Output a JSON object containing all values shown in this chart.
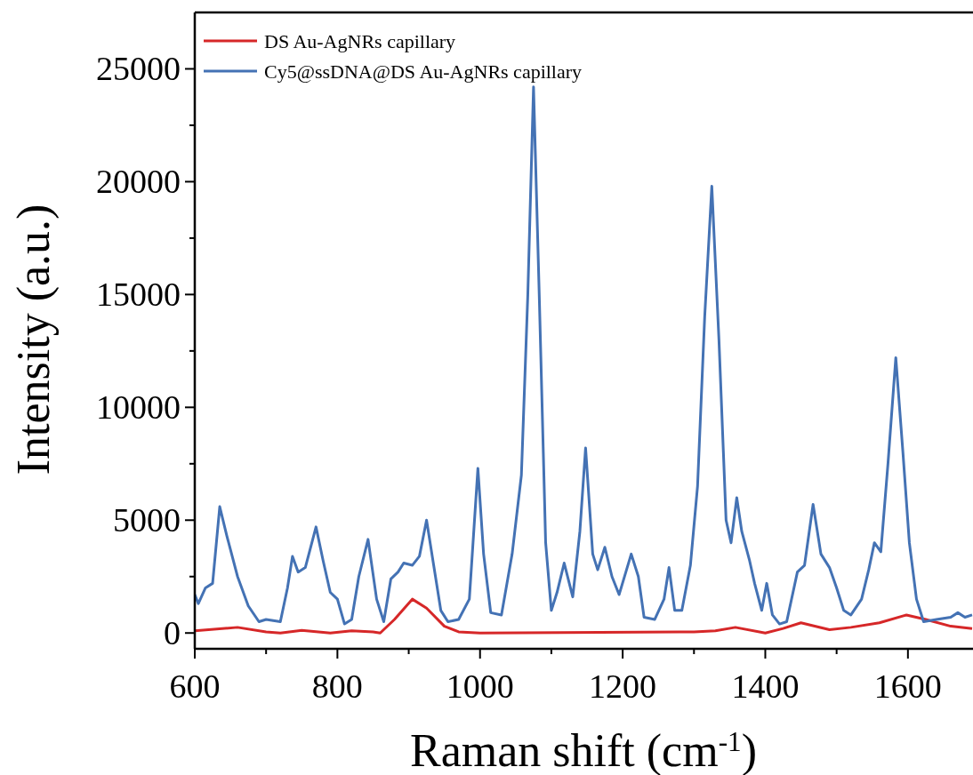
{
  "chart_data": {
    "type": "line",
    "xlabel": "Raman shift (cm$^{-1}$)",
    "ylabel": "Intensity (a.u.)",
    "xlim": [
      600,
      1690
    ],
    "ylim": [
      -700,
      27500
    ],
    "xticks": [
      600,
      {
        "value": 700,
        "label": null
      },
      800,
      {
        "value": 900,
        "label": null
      },
      1000,
      {
        "value": 1100,
        "label": null
      },
      1200,
      {
        "value": 1300,
        "label": null
      },
      1400,
      {
        "value": 1500,
        "label": null
      },
      1600
    ],
    "yticks": [
      0,
      {
        "value": 2500,
        "label": null
      },
      5000,
      {
        "value": 7500,
        "label": null
      },
      10000,
      {
        "value": 12500,
        "label": null
      },
      15000,
      {
        "value": 17500,
        "label": null
      },
      20000,
      {
        "value": 22500,
        "label": null
      },
      25000
    ],
    "grid": false,
    "legend": "top left",
    "line_style": "solid",
    "series": [
      {
        "name": "DS Au-AgNRs capillary",
        "color": "#d62728",
        "x": [
          600,
          660,
          700,
          720,
          750,
          790,
          820,
          850,
          860,
          880,
          905,
          925,
          950,
          970,
          1000,
          1300,
          1330,
          1358,
          1400,
          1425,
          1450,
          1490,
          1520,
          1560,
          1598,
          1625,
          1660,
          1690
        ],
        "values": [
          100,
          250,
          50,
          0,
          120,
          0,
          100,
          50,
          0,
          600,
          1500,
          1100,
          300,
          50,
          0,
          50,
          100,
          250,
          0,
          200,
          450,
          150,
          250,
          450,
          800,
          600,
          300,
          200
        ]
      },
      {
        "name": "Cy5@ssDNA@DS Au-AgNRs capillary",
        "color": "#4472b4",
        "x": [
          600,
          605,
          615,
          625,
          635,
          645,
          660,
          675,
          690,
          700,
          720,
          730,
          737,
          745,
          755,
          770,
          780,
          790,
          800,
          810,
          820,
          830,
          843,
          855,
          865,
          875,
          885,
          893,
          905,
          915,
          925,
          935,
          945,
          955,
          970,
          985,
          997,
          1005,
          1015,
          1030,
          1045,
          1058,
          1067,
          1075,
          1083,
          1092,
          1100,
          1108,
          1118,
          1130,
          1140,
          1148,
          1158,
          1165,
          1175,
          1185,
          1195,
          1212,
          1222,
          1230,
          1245,
          1258,
          1265,
          1273,
          1283,
          1295,
          1305,
          1315,
          1325,
          1335,
          1345,
          1352,
          1360,
          1367,
          1378,
          1385,
          1395,
          1402,
          1410,
          1420,
          1430,
          1445,
          1455,
          1467,
          1478,
          1490,
          1500,
          1510,
          1520,
          1535,
          1545,
          1553,
          1562,
          1572,
          1583,
          1593,
          1602,
          1612,
          1622,
          1640,
          1660,
          1670,
          1680,
          1690
        ],
        "values": [
          1700,
          1300,
          2000,
          2200,
          5600,
          4300,
          2500,
          1200,
          500,
          600,
          500,
          2000,
          3400,
          2700,
          2900,
          4700,
          3200,
          1800,
          1500,
          400,
          600,
          2500,
          4150,
          1500,
          500,
          2400,
          2700,
          3100,
          3000,
          3400,
          5000,
          3000,
          1000,
          500,
          600,
          1500,
          7300,
          3500,
          900,
          800,
          3500,
          7000,
          15000,
          24200,
          15000,
          4000,
          1000,
          1800,
          3100,
          1600,
          4500,
          8200,
          3500,
          2800,
          3800,
          2500,
          1700,
          3500,
          2500,
          700,
          600,
          1500,
          2900,
          1000,
          1000,
          3000,
          6500,
          14000,
          19800,
          13000,
          5000,
          4000,
          6000,
          4500,
          3200,
          2200,
          1000,
          2200,
          800,
          400,
          500,
          2700,
          3000,
          5700,
          3500,
          2900,
          2000,
          1000,
          800,
          1500,
          2800,
          4000,
          3600,
          7500,
          12200,
          8000,
          4000,
          1500,
          500,
          600,
          700,
          900,
          700,
          800
        ]
      }
    ]
  }
}
